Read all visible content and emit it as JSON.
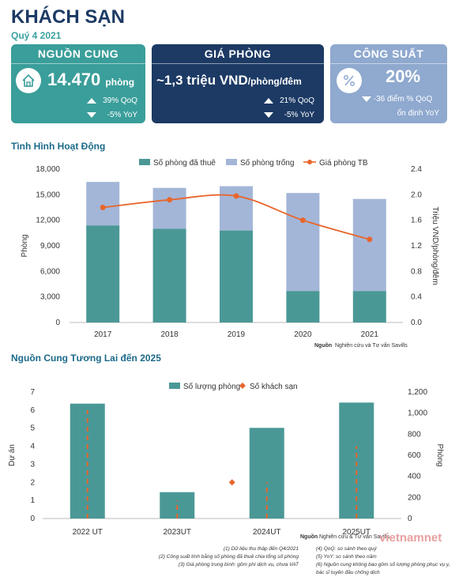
{
  "header": {
    "title": "KHÁCH SẠN",
    "subtitle": "Quý 4 2021"
  },
  "cards": {
    "supply": {
      "title": "NGUỒN CUNG",
      "value": "14.470",
      "unit": "phòng",
      "qoq": "39% QoQ",
      "yoy": "-5% YoY",
      "icon": "home-icon",
      "color": "#3a9e9a"
    },
    "price": {
      "title": "GIÁ PHÒNG",
      "value": "~1,3 triệu VND",
      "unit": "/phòng/đêm",
      "qoq": "21% QoQ",
      "yoy": "-5% YoY",
      "color": "#1c3a64"
    },
    "occupancy": {
      "title": "CÔNG SUẤT",
      "value": "20%",
      "change": "-36 điểm % QoQ",
      "stable": "ổn định YoY",
      "icon": "percent-icon",
      "color": "#8fa9cf"
    }
  },
  "chart1": {
    "section_title": "Tình Hình Hoạt Động",
    "source_label": "Nguồn",
    "source_text": "Nghiên cứu và Tư vấn Savills",
    "chart_data": {
      "type": "bar",
      "categories": [
        "2017",
        "2018",
        "2019",
        "2020",
        "2021"
      ],
      "series": [
        {
          "name": "Số phòng đã thuê",
          "values": [
            11400,
            11000,
            10800,
            3700,
            3700
          ],
          "color": "#4a9896"
        },
        {
          "name": "Số phòng trống",
          "values": [
            5100,
            4800,
            5200,
            11500,
            10800
          ],
          "color": "#a3b6d8"
        },
        {
          "name": "Giá phòng TB",
          "values": [
            1.8,
            1.92,
            1.98,
            1.6,
            1.3
          ],
          "color": "#e8662c",
          "axis": "right"
        }
      ],
      "ylabel": "Phòng",
      "y2label": "Triệu VND/phòng/đêm",
      "ylim": [
        0,
        18000
      ],
      "y2lim": [
        0,
        2.4
      ],
      "yticks": [
        "0",
        "3,000",
        "6,000",
        "9,000",
        "12,000",
        "15,000",
        "18,000"
      ],
      "y2ticks": [
        "0.0",
        "0.4",
        "0.8",
        "1.2",
        "1.6",
        "2.0",
        "2.4"
      ]
    }
  },
  "chart2": {
    "section_title": "Nguồn Cung Tương Lai đến 2025",
    "source_label": "Nguồn",
    "source_text": "Nghiên cứu & Tư vấn Savills",
    "chart_data": {
      "type": "bar",
      "categories": [
        "2022 UT",
        "2023UT",
        "2024UT",
        "2025UT"
      ],
      "series": [
        {
          "name": "Số lượng phòng",
          "values": [
            1090,
            250,
            860,
            1100
          ],
          "color": "#4a9896",
          "axis": "right"
        },
        {
          "name": "Số khách sạn",
          "values": [
            6,
            1,
            2,
            4
          ],
          "color": "#e8662c"
        }
      ],
      "ylabel": "Dự án",
      "y2label": "Phòng",
      "ylim": [
        0,
        7
      ],
      "y2lim": [
        0,
        1200
      ],
      "yticks": [
        "0",
        "1",
        "2",
        "3",
        "4",
        "5",
        "6",
        "7"
      ],
      "y2ticks": [
        "0",
        "200",
        "400",
        "600",
        "800",
        "1,000",
        "1,200"
      ]
    }
  },
  "notes": {
    "n1": "(1)  Dữ liệu thu thập đến Q4/2021",
    "n2": "(2)  Công suất tính bằng số phòng đã thuê chia tổng số phòng",
    "n3": "(3)  Giá phòng trung bình: gồm phí dịch vụ, chưa VAT",
    "n4": "(4) QoQ: so sánh theo quý",
    "n5": "(5) YoY: so sánh theo năm",
    "n6": "(6) Nguồn cung không bao gồm số lượng phòng phục vụ y, bác sĩ tuyến đầu chống dịch"
  },
  "watermark": "vietnamnet"
}
